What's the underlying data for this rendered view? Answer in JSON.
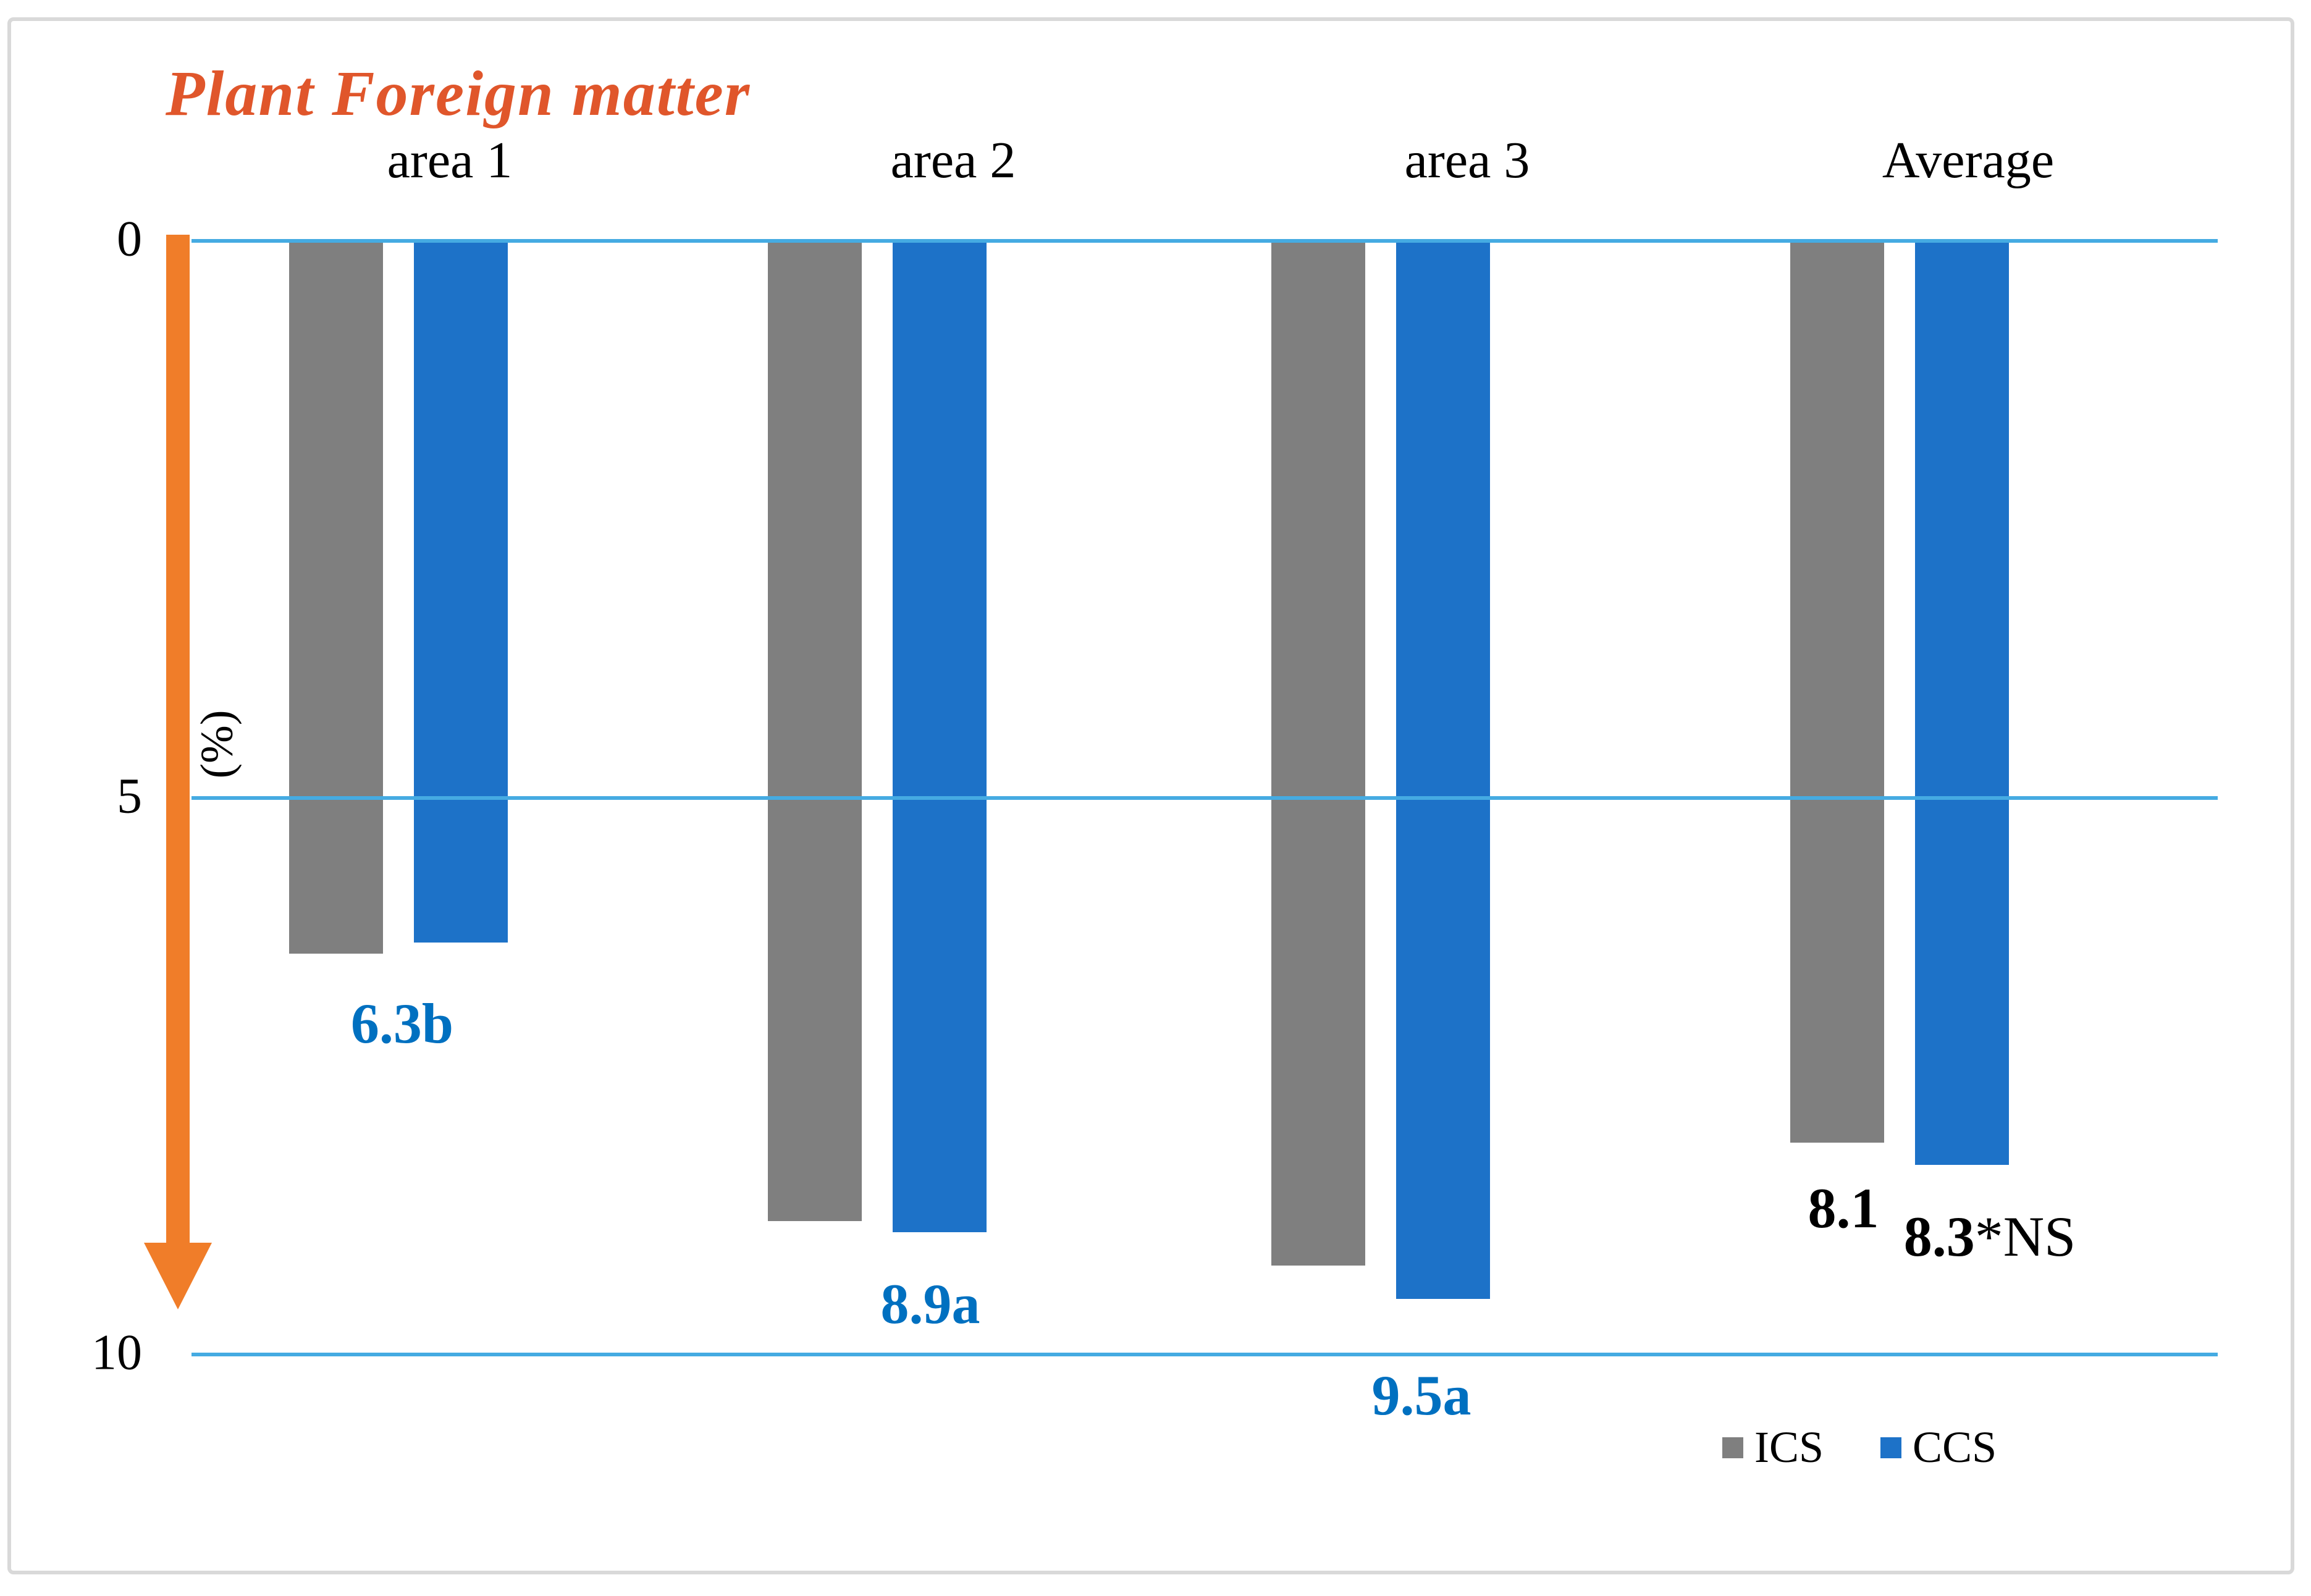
{
  "chart_data": {
    "type": "bar",
    "title": "Plant Foreign matter",
    "ylabel": "(%)",
    "ylim": [
      0,
      10
    ],
    "y_inverted": true,
    "grid": true,
    "y_ticks": [
      {
        "value": 0,
        "label": "0"
      },
      {
        "value": 5,
        "label": "5"
      },
      {
        "value": 10,
        "label": "10"
      }
    ],
    "categories": [
      "area 1",
      "area 2",
      "area 3",
      "Average"
    ],
    "series": [
      {
        "name": "ICS",
        "color": "#7f7f7f",
        "values": [
          6.4,
          8.8,
          9.2,
          8.1
        ],
        "value_labels": [
          null,
          null,
          null,
          {
            "text": "8.1",
            "color": "#000000"
          }
        ]
      },
      {
        "name": "CCS",
        "color": "#1d72c8",
        "values": [
          6.3,
          8.9,
          9.5,
          8.3
        ],
        "value_labels": [
          {
            "text": "6.3b",
            "color": "#0070c0"
          },
          {
            "text": "8.9a",
            "color": "#0070c0"
          },
          {
            "text": "9.5a",
            "color": "#0070c0"
          },
          {
            "text": "8.3",
            "suffix": "*NS",
            "color": "#000000"
          }
        ]
      }
    ],
    "legend_position": "bottom-right"
  },
  "style": {
    "title_color": "#e0562b",
    "axis_arrow_color": "#f07d29",
    "gridline_color": "#45abe2",
    "frame_color": "#d9d9d9",
    "tick_label_color": "#000000",
    "category_label_color": "#000000",
    "legend_text_color": "#000000"
  }
}
